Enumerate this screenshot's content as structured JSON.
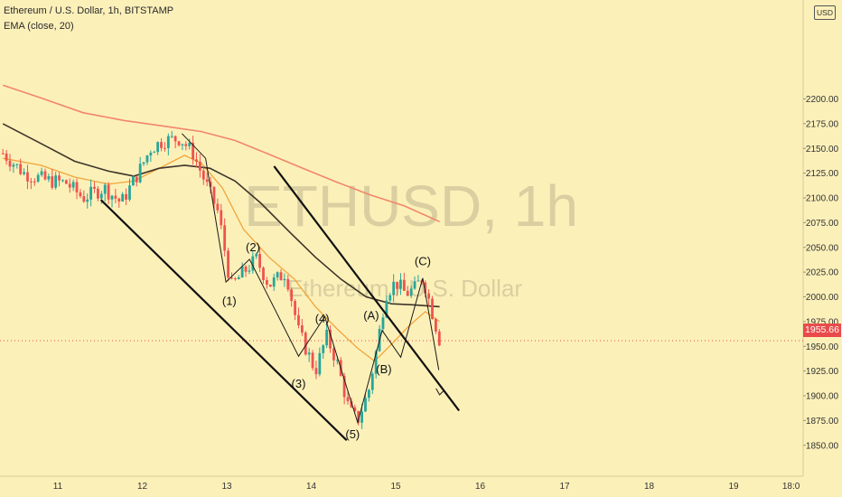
{
  "header": {
    "title": "Ethereum / U.S. Dollar, 1h, BITSTAMP",
    "indicator": "EMA (close, 20)",
    "currency_badge": "USD"
  },
  "watermark": {
    "symbol": "ETHUSD, 1h",
    "name": "Ethereum / U.S. Dollar"
  },
  "price_tag": "1955.66",
  "colors": {
    "background": "#fcf0b9",
    "up_candle": "#26a69a",
    "down_candle": "#ef5350",
    "ema20": "#f0a53a",
    "ma_long": "#f2866a",
    "ma_mid": "#3d3529",
    "annotation": "#111111",
    "price_tag": "#e84b4b"
  },
  "chart_data": {
    "type": "candlestick",
    "title": "Ethereum / U.S. Dollar, 1h, BITSTAMP",
    "ylim": [
      1837,
      2234
    ],
    "y_ticks": [
      "1850.00",
      "1875.00",
      "1900.00",
      "1925.00",
      "1950.00",
      "1975.00",
      "2000.00",
      "2025.00",
      "2050.00",
      "2075.00",
      "2100.00",
      "2125.00",
      "2150.00",
      "2175.00",
      "2200.00"
    ],
    "x_ticks": [
      {
        "label": "11",
        "d": 11
      },
      {
        "label": "12",
        "d": 12
      },
      {
        "label": "13",
        "d": 13
      },
      {
        "label": "14",
        "d": 14
      },
      {
        "label": "15",
        "d": 15
      },
      {
        "label": "16",
        "d": 16
      },
      {
        "label": "17",
        "d": 17
      },
      {
        "label": "18",
        "d": 18
      },
      {
        "label": "19",
        "d": 19
      },
      {
        "label": "18:0",
        "d": 19.68
      }
    ],
    "last_price": 1955.66,
    "ohlc_path": [
      {
        "d": 10.35,
        "p": 2145
      },
      {
        "d": 10.6,
        "p": 2125
      },
      {
        "d": 10.85,
        "p": 2118
      },
      {
        "d": 11.1,
        "p": 2115
      },
      {
        "d": 11.3,
        "p": 2100
      },
      {
        "d": 11.55,
        "p": 2110
      },
      {
        "d": 11.75,
        "p": 2095
      },
      {
        "d": 11.95,
        "p": 2125
      },
      {
        "d": 12.1,
        "p": 2150
      },
      {
        "d": 12.25,
        "p": 2158
      },
      {
        "d": 12.45,
        "p": 2160
      },
      {
        "d": 12.6,
        "p": 2145
      },
      {
        "d": 12.75,
        "p": 2115
      },
      {
        "d": 12.9,
        "p": 2085
      },
      {
        "d": 13.05,
        "p": 2010
      },
      {
        "d": 13.2,
        "p": 2025
      },
      {
        "d": 13.35,
        "p": 2038
      },
      {
        "d": 13.5,
        "p": 2012
      },
      {
        "d": 13.7,
        "p": 2025
      },
      {
        "d": 13.85,
        "p": 1965
      },
      {
        "d": 14.05,
        "p": 1925
      },
      {
        "d": 14.18,
        "p": 1960
      },
      {
        "d": 14.3,
        "p": 1935
      },
      {
        "d": 14.45,
        "p": 1885
      },
      {
        "d": 14.55,
        "p": 1875
      },
      {
        "d": 14.68,
        "p": 1905
      },
      {
        "d": 14.78,
        "p": 1950
      },
      {
        "d": 14.88,
        "p": 2003
      },
      {
        "d": 15.0,
        "p": 2015
      },
      {
        "d": 15.12,
        "p": 2003
      },
      {
        "d": 15.22,
        "p": 2008
      },
      {
        "d": 15.32,
        "p": 2020
      },
      {
        "d": 15.4,
        "p": 1995
      },
      {
        "d": 15.52,
        "p": 1956
      }
    ],
    "series": [
      {
        "name": "EMA (close, 20)",
        "color": "#f0a53a",
        "points": [
          [
            10.35,
            2140
          ],
          [
            10.8,
            2133
          ],
          [
            11.2,
            2121
          ],
          [
            11.6,
            2114
          ],
          [
            11.9,
            2117
          ],
          [
            12.2,
            2130
          ],
          [
            12.5,
            2143
          ],
          [
            12.7,
            2135
          ],
          [
            12.95,
            2110
          ],
          [
            13.2,
            2068
          ],
          [
            13.5,
            2040
          ],
          [
            13.8,
            2018
          ],
          [
            14.05,
            1990
          ],
          [
            14.3,
            1968
          ],
          [
            14.55,
            1948
          ],
          [
            14.75,
            1935
          ],
          [
            14.95,
            1952
          ],
          [
            15.15,
            1970
          ],
          [
            15.35,
            1985
          ],
          [
            15.52,
            1975
          ]
        ]
      },
      {
        "name": "",
        "color": "#3d3529",
        "points": [
          [
            10.35,
            2175
          ],
          [
            10.8,
            2155
          ],
          [
            11.2,
            2137
          ],
          [
            11.6,
            2127
          ],
          [
            11.9,
            2122
          ],
          [
            12.2,
            2130
          ],
          [
            12.5,
            2133
          ],
          [
            12.8,
            2130
          ],
          [
            13.1,
            2117
          ],
          [
            13.4,
            2095
          ],
          [
            13.75,
            2065
          ],
          [
            14.05,
            2040
          ],
          [
            14.35,
            2018
          ],
          [
            14.65,
            2000
          ],
          [
            14.95,
            1993
          ],
          [
            15.2,
            1992
          ],
          [
            15.52,
            1990
          ]
        ]
      },
      {
        "name": "",
        "color": "#f2866a",
        "points": [
          [
            10.35,
            2214
          ],
          [
            10.8,
            2201
          ],
          [
            11.3,
            2186
          ],
          [
            11.8,
            2178
          ],
          [
            12.3,
            2172
          ],
          [
            12.7,
            2167
          ],
          [
            13.1,
            2158
          ],
          [
            13.5,
            2144
          ],
          [
            13.9,
            2130
          ],
          [
            14.3,
            2116
          ],
          [
            14.7,
            2103
          ],
          [
            15.1,
            2092
          ],
          [
            15.52,
            2076
          ]
        ]
      }
    ],
    "annotations": {
      "channel_lines": [
        {
          "from": [
            13.56,
            2132
          ],
          "to": [
            15.75,
            1885
          ]
        },
        {
          "from": [
            11.51,
            2098
          ],
          "to": [
            14.42,
            1855
          ]
        }
      ],
      "wave_lines": [
        [
          [
            12.47,
            2165
          ],
          [
            12.75,
            2140
          ],
          [
            12.99,
            2015
          ],
          [
            13.27,
            2038
          ],
          [
            13.85,
            1940
          ],
          [
            14.16,
            1980
          ],
          [
            14.55,
            1873
          ],
          [
            14.84,
            1966
          ],
          [
            15.06,
            1939
          ],
          [
            15.32,
            2019
          ],
          [
            15.51,
            1926
          ]
        ]
      ],
      "arrow_to": [
        15.52,
        1901
      ],
      "labels": [
        {
          "text": "(1)",
          "d": 13.03,
          "p": 1992
        },
        {
          "text": "(2)",
          "d": 13.31,
          "p": 2046
        },
        {
          "text": "(3)",
          "d": 13.85,
          "p": 1908
        },
        {
          "text": "(4)",
          "d": 14.13,
          "p": 1974
        },
        {
          "text": "(5)",
          "d": 14.49,
          "p": 1857
        },
        {
          "text": "(A)",
          "d": 14.71,
          "p": 1977
        },
        {
          "text": "(B)",
          "d": 14.86,
          "p": 1923
        },
        {
          "text": "(C)",
          "d": 15.32,
          "p": 2032
        }
      ]
    }
  }
}
